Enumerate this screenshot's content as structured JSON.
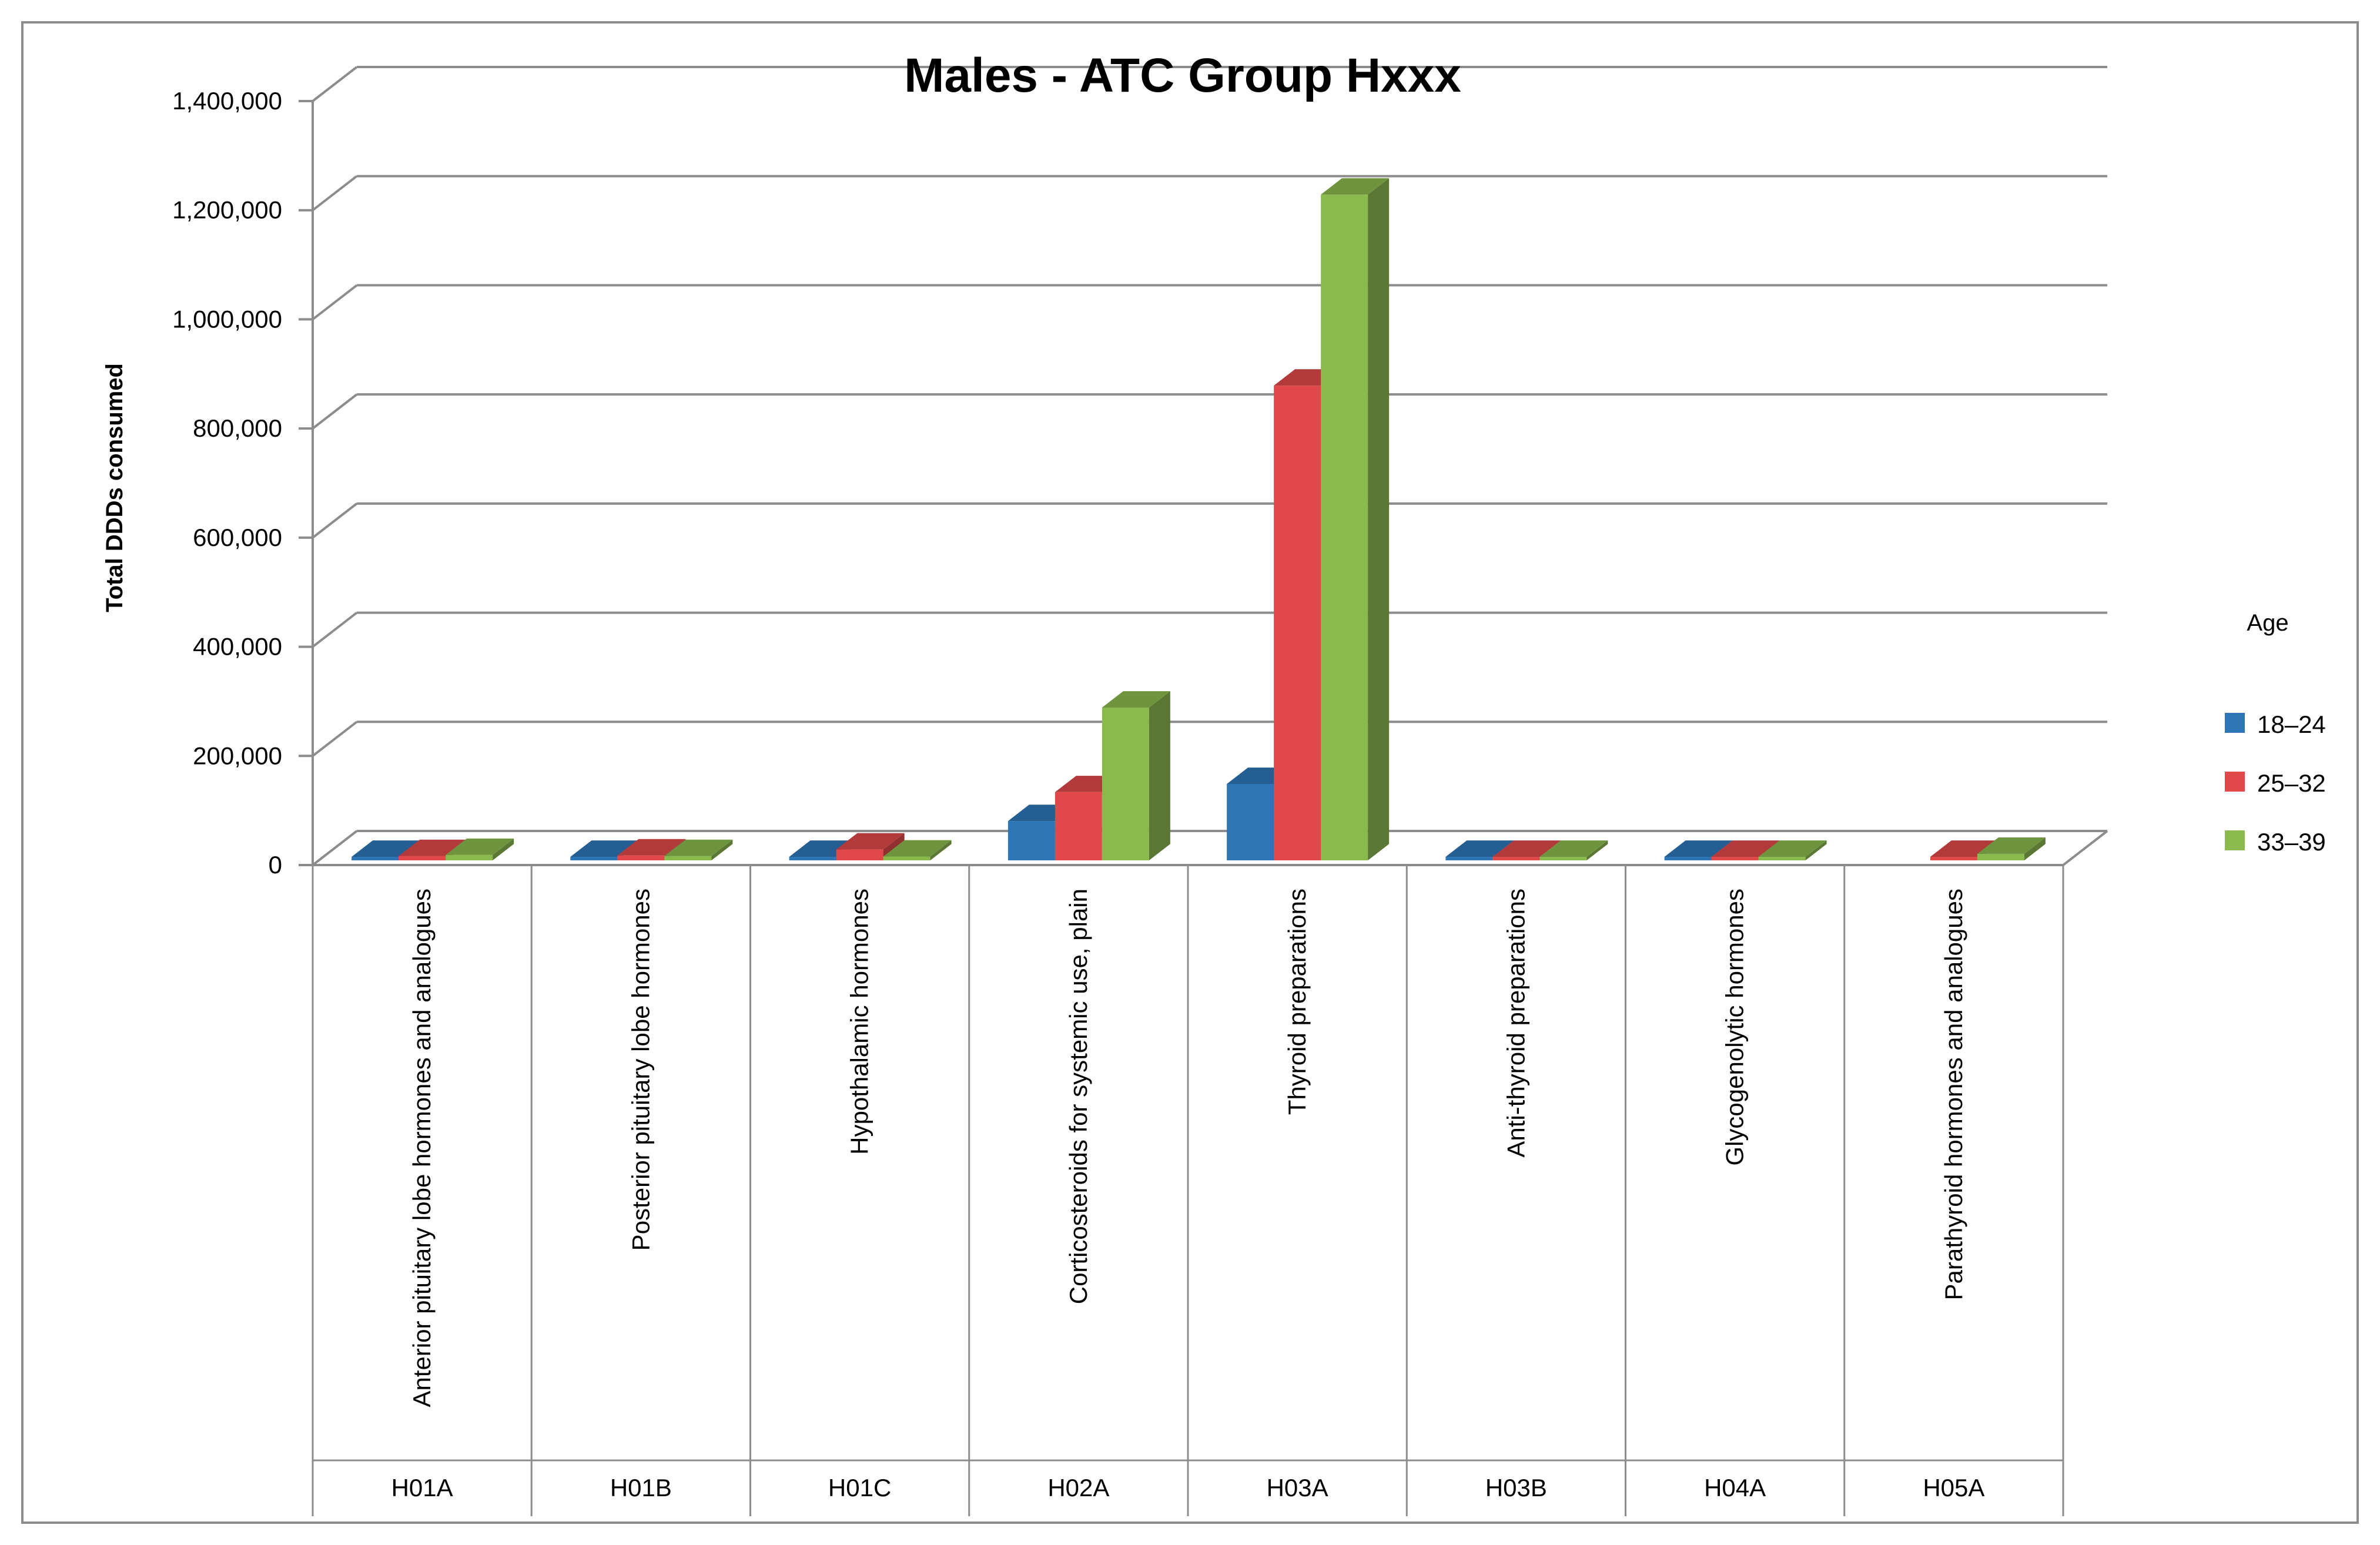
{
  "chart_data": {
    "type": "bar",
    "title": "Males - ATC Group Hxxx",
    "ylabel": "Total DDDs consumed",
    "xlabel": "",
    "ylim": [
      0,
      1400000
    ],
    "yticks": [
      0,
      200000,
      400000,
      600000,
      800000,
      1000000,
      1200000,
      1400000
    ],
    "ytick_labels": [
      "0",
      "200,000",
      "400,000",
      "600,000",
      "800,000",
      "1,000,000",
      "1,200,000",
      "1,400,000"
    ],
    "categories": [
      "H01A",
      "H01B",
      "H01C",
      "H02A",
      "H03A",
      "H03B",
      "H04A",
      "H05A"
    ],
    "category_descriptions": [
      "Anterior pituitary lobe hormones and analogues",
      "Posterior pituitary lobe hormones",
      "Hypothalamic hormones",
      "Corticosteroids for systemic use, plain",
      "Thyroid preparations",
      "Anti-thyroid preparations",
      "Glycogenolytic hormones",
      "Parathyroid hormones and analogues"
    ],
    "legend_title": "Age",
    "legend_position": "right",
    "grid": true,
    "three_d": true,
    "series": [
      {
        "name": "18–24",
        "color": "#2e75b6",
        "values": [
          3000,
          2000,
          1500,
          72000,
          140000,
          1000,
          500,
          0
        ]
      },
      {
        "name": "25–32",
        "color": "#e0484a",
        "values": [
          8000,
          9000,
          20000,
          125000,
          870000,
          2000,
          1000,
          3000
        ]
      },
      {
        "name": "33–39",
        "color": "#8ab94e",
        "values": [
          10000,
          8000,
          7000,
          280000,
          1220000,
          1500,
          1000,
          12000
        ]
      }
    ]
  }
}
